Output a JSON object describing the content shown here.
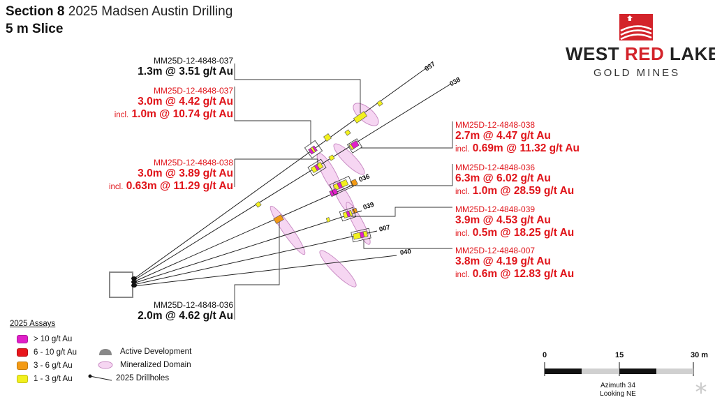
{
  "title": {
    "section": "Section 8",
    "name": "2025 Madsen Austin Drilling",
    "slice": "5 m Slice"
  },
  "logo": {
    "line1a": "WEST ",
    "line1b": "RED",
    "line1c": " LAKE",
    "line2": "GOLD MINES",
    "accent": "#d3232a"
  },
  "labels": {
    "l037_black": {
      "hole": "MM25D-12-4848-037",
      "result": "1.3m @ 3.51 g/t Au"
    },
    "l037_red": {
      "hole": "MM25D-12-4848-037",
      "result": "3.0m @ 4.42 g/t Au",
      "incl_prefix": "incl.",
      "incl": "1.0m @ 10.74 g/t Au"
    },
    "l038_left": {
      "hole": "MM25D-12-4848-038",
      "result": "3.0m @ 3.89 g/t Au",
      "incl_prefix": "incl.",
      "incl": "0.63m @ 11.29 g/t Au"
    },
    "l036_black": {
      "hole": "MM25D-12-4848-036",
      "result": "2.0m @ 4.62 g/t Au"
    },
    "l038_right": {
      "hole": "MM25D-12-4848-038",
      "result": "2.7m @ 4.47 g/t Au",
      "incl_prefix": "incl.",
      "incl": "0.69m @ 11.32 g/t Au"
    },
    "l036_right": {
      "hole": "MM25D-12-4848-036",
      "result": "6.3m @ 6.02 g/t Au",
      "incl_prefix": "incl.",
      "incl": "1.0m @ 28.59 g/t Au"
    },
    "l039_right": {
      "hole": "MM25D-12-4848-039",
      "result": "3.9m @ 4.53 g/t Au",
      "incl_prefix": "incl.",
      "incl": "0.5m @ 18.25 g/t Au"
    },
    "l007_right": {
      "hole": "MM25D-12-4848-007",
      "result": "3.8m @ 4.19 g/t Au",
      "incl_prefix": "incl.",
      "incl": "0.6m @ 12.83 g/t Au"
    }
  },
  "hole_ids": {
    "h037": "037",
    "h038": "038",
    "h036": "036",
    "h039": "039",
    "h007": "007",
    "h040": "040"
  },
  "legend": {
    "title": "2025 Assays",
    "items": [
      {
        "label": "> 10 g/t Au",
        "color": "#e020c8"
      },
      {
        "label": "6 - 10 g/t Au",
        "color": "#e8161c"
      },
      {
        "label": "3 - 6 g/t Au",
        "color": "#f39a14"
      },
      {
        "label": "1 - 3 g/t Au",
        "color": "#f2f01e"
      }
    ],
    "active_development": "Active Development",
    "mineralized_domain": "Mineralized Domain",
    "drillholes": "2025 Drillholes"
  },
  "scale": {
    "t0": "0",
    "t1": "15",
    "t2": "30 m",
    "azimuth": "Azimuth 34",
    "looking": "Looking NE"
  },
  "colors": {
    "red_text": "#e0141a",
    "domain_fill": "#f6d6f2",
    "domain_stroke": "#c98cc4"
  }
}
